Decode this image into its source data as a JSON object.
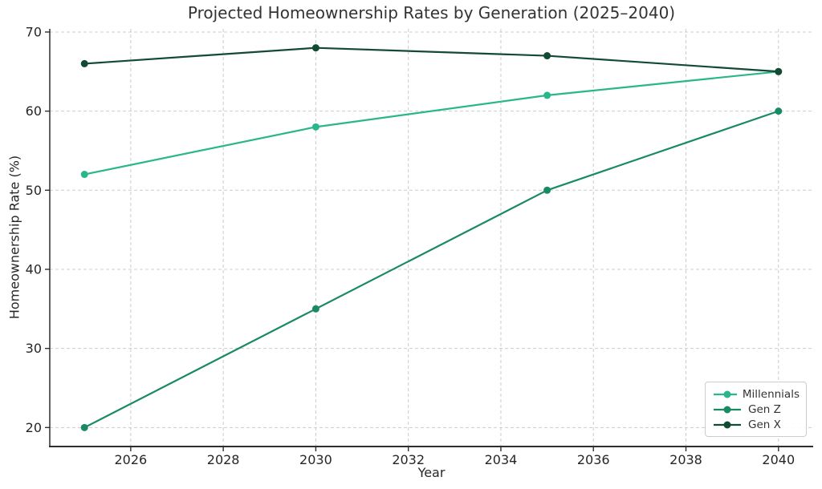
{
  "chart_data": {
    "type": "line",
    "title": "Projected Homeownership Rates by Generation (2025–2040)",
    "xlabel": "Year",
    "ylabel": "Homeownership Rate (%)",
    "x": [
      2025,
      2030,
      2035,
      2040
    ],
    "series": [
      {
        "name": "Millennials",
        "values": [
          52,
          58,
          62,
          65
        ],
        "color": "#2ab68b"
      },
      {
        "name": "Gen Z",
        "values": [
          20,
          35,
          50,
          60
        ],
        "color": "#1a8a64"
      },
      {
        "name": "Gen X",
        "values": [
          66,
          68,
          67,
          65
        ],
        "color": "#134a33"
      }
    ],
    "xticks": [
      2026,
      2028,
      2030,
      2032,
      2034,
      2036,
      2038,
      2040
    ],
    "yticks": [
      20,
      30,
      40,
      50,
      60,
      70
    ],
    "xlim": [
      2024.25,
      2040.75
    ],
    "ylim": [
      17.6,
      70.4
    ],
    "grid": "dashed",
    "grid_color": "#cccccc",
    "spine_color": "#2e2e2e",
    "tick_label_color": "#262626",
    "legend_position": "lower right",
    "marker": "circle",
    "line_width": 2.2,
    "marker_radius": 4.5
  }
}
